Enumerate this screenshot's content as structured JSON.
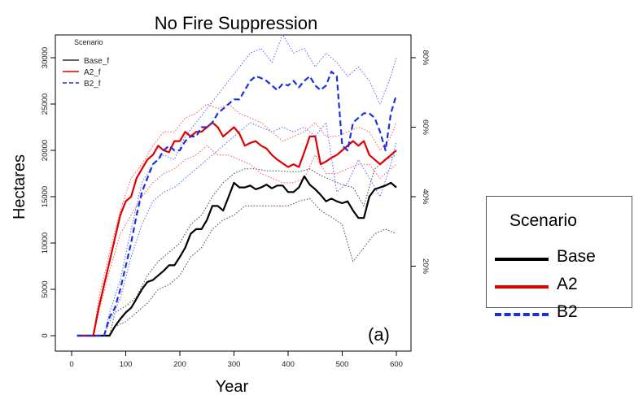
{
  "chart_data": {
    "type": "line",
    "title": "No Fire Suppression",
    "xlabel": "Year",
    "ylabel": "Hectares",
    "xlim": [
      0,
      600
    ],
    "ylim": [
      0,
      30000
    ],
    "x_ticks": [
      "0",
      "100",
      "200",
      "300",
      "400",
      "500",
      "600"
    ],
    "y_ticks": [
      "0",
      "5000",
      "10000",
      "15000",
      "20000",
      "25000",
      "30000"
    ],
    "y2_ticks": [
      "20%",
      "40%",
      "60%",
      "80%"
    ],
    "y2_tick_positions": [
      0.2,
      0.4,
      0.6,
      0.8
    ],
    "y2_scale_max_hectares": 37500,
    "panel_label": "(a)",
    "grid": false,
    "small_legend": {
      "title": "Scenario",
      "entries": [
        "Base_f",
        "A2_f",
        "B2_f"
      ],
      "placement": "top-left"
    },
    "big_legend": {
      "title": "Scenario",
      "entries": [
        "Base",
        "A2",
        "B2"
      ],
      "placement": "right, outside plot"
    },
    "series": [
      {
        "name": "Base",
        "color": "#000000",
        "style": "solid",
        "x": [
          10,
          20,
          30,
          40,
          50,
          60,
          70,
          80,
          90,
          100,
          110,
          120,
          130,
          140,
          150,
          160,
          170,
          180,
          190,
          200,
          210,
          220,
          230,
          240,
          250,
          260,
          270,
          280,
          290,
          300,
          310,
          320,
          330,
          340,
          350,
          360,
          370,
          380,
          390,
          400,
          410,
          420,
          430,
          440,
          450,
          460,
          470,
          480,
          490,
          500,
          510,
          520,
          530,
          540,
          550,
          560,
          570,
          580,
          590,
          600
        ],
        "values": [
          0,
          0,
          0,
          0,
          0,
          0,
          0,
          1000,
          1800,
          2500,
          3000,
          4000,
          5000,
          5800,
          6000,
          6500,
          7000,
          7600,
          7600,
          8500,
          9500,
          11000,
          11500,
          11500,
          12500,
          14000,
          14000,
          13500,
          15000,
          16500,
          16000,
          16000,
          16200,
          15800,
          16000,
          16300,
          15900,
          16200,
          16200,
          15500,
          15500,
          16000,
          17200,
          16300,
          15800,
          15200,
          14500,
          14800,
          14500,
          14300,
          14500,
          13500,
          12700,
          12700,
          15000,
          15800,
          16000,
          16200,
          16500,
          16000
        ]
      },
      {
        "name": "A2",
        "color": "#e00000",
        "style": "solid",
        "x": [
          10,
          20,
          30,
          40,
          50,
          60,
          70,
          80,
          90,
          100,
          110,
          120,
          130,
          140,
          150,
          160,
          170,
          180,
          190,
          200,
          210,
          220,
          230,
          240,
          250,
          260,
          270,
          280,
          290,
          300,
          310,
          320,
          330,
          340,
          350,
          360,
          370,
          380,
          390,
          400,
          410,
          420,
          430,
          440,
          450,
          460,
          470,
          480,
          490,
          500,
          510,
          520,
          530,
          540,
          550,
          560,
          570,
          580,
          590,
          600
        ],
        "values": [
          0,
          0,
          0,
          0,
          3000,
          5500,
          8000,
          10500,
          13000,
          14500,
          15000,
          17000,
          18000,
          19000,
          19500,
          20500,
          20000,
          19800,
          21000,
          21000,
          22000,
          21500,
          22000,
          22000,
          22500,
          23000,
          22500,
          21500,
          22000,
          22500,
          21800,
          20500,
          20800,
          21000,
          20500,
          20200,
          19500,
          19000,
          18600,
          18200,
          18500,
          18200,
          19800,
          21500,
          21500,
          18500,
          18800,
          19200,
          19500,
          20000,
          20500,
          21000,
          20500,
          21000,
          19500,
          19000,
          18500,
          19000,
          19500,
          20000
        ]
      },
      {
        "name": "B2",
        "color": "#1a2fe0",
        "style": "dashed",
        "x": [
          10,
          20,
          30,
          40,
          50,
          60,
          70,
          80,
          90,
          100,
          110,
          120,
          130,
          140,
          150,
          160,
          170,
          180,
          190,
          200,
          210,
          220,
          230,
          240,
          250,
          260,
          270,
          280,
          290,
          300,
          310,
          320,
          330,
          340,
          350,
          360,
          370,
          380,
          390,
          400,
          410,
          420,
          430,
          440,
          450,
          460,
          470,
          480,
          490,
          500,
          510,
          520,
          530,
          540,
          550,
          560,
          570,
          580,
          590,
          600
        ],
        "values": [
          0,
          0,
          0,
          0,
          0,
          0,
          2000,
          3000,
          5000,
          7500,
          10000,
          13000,
          15500,
          17000,
          18500,
          19000,
          20000,
          20500,
          20000,
          20000,
          21000,
          21500,
          21500,
          22500,
          22500,
          23000,
          24000,
          24500,
          25000,
          25500,
          25500,
          26500,
          27500,
          28000,
          27800,
          27500,
          27000,
          26500,
          27200,
          27000,
          27500,
          26800,
          27500,
          28000,
          27000,
          26500,
          27000,
          28500,
          28000,
          20500,
          20000,
          23000,
          23500,
          24000,
          24000,
          23500,
          22000,
          20000,
          24000,
          26000
        ]
      },
      {
        "name": "",
        "color": "#444444",
        "style": "dotted",
        "x": [
          10,
          40,
          70,
          80,
          100,
          120,
          140,
          160,
          180,
          200,
          220,
          240,
          260,
          280,
          300,
          320,
          340,
          360,
          380,
          400,
          420,
          440,
          460,
          480,
          500,
          520,
          540,
          560,
          580,
          600
        ],
        "values": [
          0,
          0,
          0,
          2500,
          3200,
          4200,
          6500,
          8000,
          9000,
          10000,
          12000,
          13000,
          15000,
          16500,
          17500,
          18000,
          18000,
          17800,
          17800,
          17700,
          17700,
          18000,
          17300,
          16800,
          16300,
          16000,
          14000,
          18000,
          19000,
          19500
        ]
      },
      {
        "name": "",
        "color": "#444444",
        "style": "dotted",
        "x": [
          10,
          40,
          70,
          80,
          100,
          120,
          140,
          160,
          180,
          200,
          220,
          240,
          260,
          280,
          300,
          320,
          340,
          360,
          380,
          400,
          420,
          440,
          460,
          480,
          500,
          520,
          540,
          560,
          580,
          600
        ],
        "values": [
          0,
          0,
          0,
          1000,
          1500,
          2500,
          3500,
          5000,
          5500,
          6500,
          8500,
          9500,
          11500,
          12500,
          13000,
          14000,
          14000,
          14000,
          14000,
          14000,
          14500,
          14800,
          13500,
          12800,
          12000,
          8000,
          9500,
          11000,
          11500,
          11000
        ]
      },
      {
        "name": "",
        "color": "#ff5555",
        "style": "dotted",
        "x": [
          10,
          40,
          50,
          70,
          90,
          110,
          130,
          150,
          170,
          190,
          210,
          230,
          250,
          270,
          290,
          310,
          330,
          350,
          370,
          390,
          410,
          430,
          450,
          470,
          490,
          510,
          530,
          550,
          570,
          590,
          600
        ],
        "values": [
          0,
          0,
          4000,
          9000,
          13500,
          17000,
          18500,
          20500,
          22000,
          22000,
          23500,
          24000,
          25000,
          24500,
          25000,
          24000,
          23500,
          23000,
          22000,
          21000,
          21500,
          22000,
          23000,
          21500,
          21500,
          22000,
          22500,
          22000,
          20000,
          21500,
          23000
        ]
      },
      {
        "name": "",
        "color": "#ff5555",
        "style": "dotted",
        "x": [
          10,
          40,
          50,
          70,
          90,
          110,
          130,
          150,
          170,
          190,
          210,
          230,
          250,
          270,
          290,
          310,
          330,
          350,
          370,
          390,
          410,
          430,
          450,
          470,
          490,
          510,
          530,
          550,
          570,
          590,
          600
        ],
        "values": [
          0,
          0,
          2500,
          7000,
          11000,
          13000,
          15000,
          16500,
          17500,
          18000,
          19000,
          19500,
          20500,
          19500,
          19500,
          19000,
          18500,
          17500,
          17000,
          16500,
          16500,
          17000,
          19500,
          17500,
          17500,
          18000,
          18500,
          18500,
          17000,
          18000,
          18500
        ]
      },
      {
        "name": "",
        "color": "#5566ff",
        "style": "dotted",
        "x": [
          10,
          60,
          70,
          90,
          110,
          130,
          150,
          170,
          190,
          210,
          230,
          250,
          270,
          290,
          310,
          330,
          350,
          370,
          390,
          410,
          430,
          450,
          470,
          490,
          510,
          530,
          550,
          570,
          590,
          600
        ],
        "values": [
          0,
          0,
          2500,
          6000,
          11500,
          16500,
          18500,
          19500,
          19000,
          21500,
          23000,
          24500,
          26000,
          27500,
          29000,
          30500,
          31000,
          29500,
          32500,
          30500,
          31000,
          29000,
          30500,
          29500,
          28000,
          29000,
          27500,
          25000,
          28000,
          30000
        ]
      },
      {
        "name": "",
        "color": "#5566ff",
        "style": "dotted",
        "x": [
          10,
          60,
          70,
          90,
          110,
          130,
          150,
          170,
          190,
          210,
          230,
          250,
          270,
          290,
          310,
          330,
          350,
          370,
          390,
          410,
          430,
          450,
          470,
          490,
          510,
          530,
          550,
          570,
          590,
          600
        ],
        "values": [
          0,
          0,
          1500,
          4000,
          8500,
          12000,
          14500,
          15500,
          16000,
          17000,
          18000,
          19000,
          20000,
          21000,
          22000,
          23000,
          22500,
          22000,
          22500,
          22000,
          22500,
          21500,
          23000,
          15500,
          16500,
          19000,
          17000,
          15000,
          18500,
          21000
        ]
      }
    ]
  }
}
